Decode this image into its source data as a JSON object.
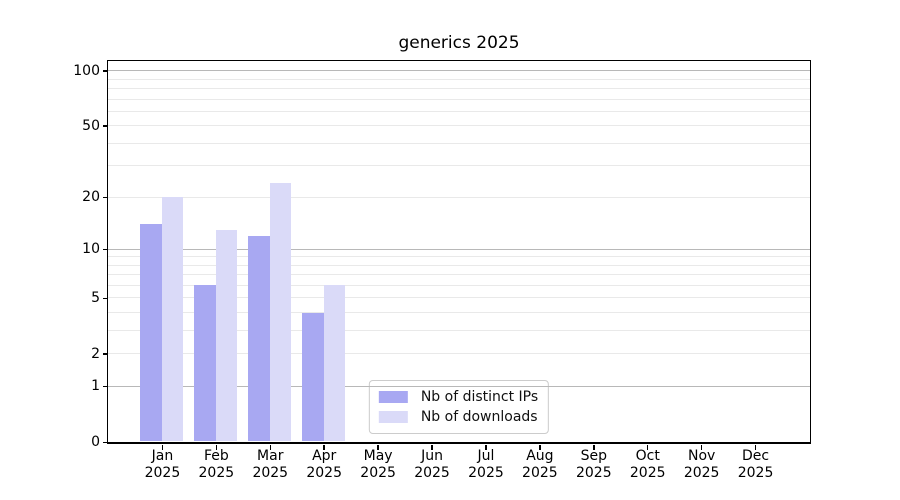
{
  "chart_data": {
    "type": "bar",
    "title": "generics 2025",
    "categories": [
      "Jan",
      "Feb",
      "Mar",
      "Apr",
      "May",
      "Jun",
      "Jul",
      "Aug",
      "Sep",
      "Oct",
      "Nov",
      "Dec"
    ],
    "category_year_suffix": "2025",
    "series": [
      {
        "name": "Nb of distinct IPs",
        "color": "#a8a8f2",
        "values": [
          14,
          6,
          12,
          4,
          0,
          0,
          0,
          0,
          0,
          0,
          0,
          0
        ]
      },
      {
        "name": "Nb of downloads",
        "color": "#dadaf8",
        "values": [
          20,
          13,
          24,
          6,
          0,
          0,
          0,
          0,
          0,
          0,
          0,
          0
        ]
      }
    ],
    "xlabel": "",
    "ylabel": "",
    "yscale": "log10(1+x)",
    "ylim": [
      0,
      113
    ],
    "yticks": [
      0,
      1,
      2,
      5,
      10,
      20,
      50,
      100
    ],
    "grid_major": [
      1,
      10,
      100
    ],
    "grid_minor": [
      2,
      3,
      4,
      5,
      6,
      7,
      8,
      9,
      20,
      30,
      40,
      50,
      60,
      70,
      80,
      90
    ],
    "grid": true,
    "legend_position": "lower center",
    "colors": {
      "grid_major": "#b8b8b8",
      "grid_minor": "#e9e9e9",
      "axis": "#000000",
      "text": "#000000"
    }
  }
}
